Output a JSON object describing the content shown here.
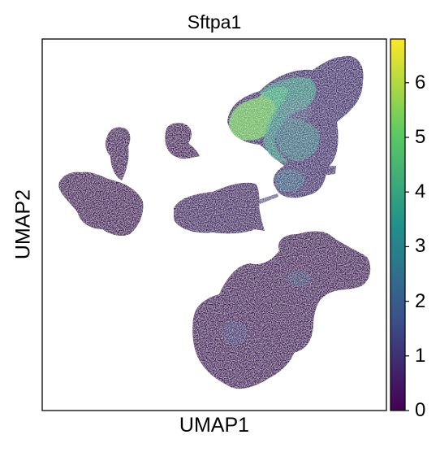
{
  "chart_data": {
    "type": "scatter",
    "title": "Sftpa1",
    "xlabel": "UMAP1",
    "ylabel": "UMAP2",
    "grid": false,
    "colorbar": {
      "colormap": "viridis",
      "range": [
        0,
        6.8
      ],
      "ticks": [
        "0",
        "1",
        "2",
        "3",
        "4",
        "5",
        "6"
      ],
      "colors": [
        "#440154",
        "#3b528b",
        "#21918c",
        "#5ec962",
        "#fde725"
      ]
    }
  }
}
